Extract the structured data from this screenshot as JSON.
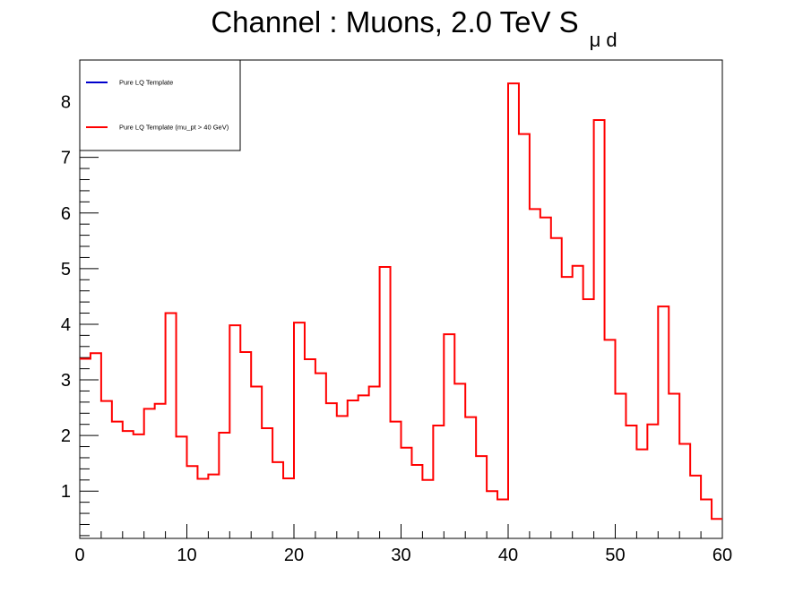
{
  "chart_data": {
    "type": "line",
    "title": "Channel : Muons, 2.0 TeV S",
    "title_subscript": "μ d",
    "xlabel": "",
    "ylabel": "",
    "xlim": [
      0,
      60
    ],
    "ylim": [
      0.15,
      8.75
    ],
    "xticks": [
      0,
      10,
      20,
      30,
      40,
      50,
      60
    ],
    "yticks": [
      1,
      2,
      3,
      4,
      5,
      6,
      7,
      8
    ],
    "grid": false,
    "legend_position": "top-left",
    "bin_width": 1,
    "series": [
      {
        "name": "Pure LQ Template",
        "color": "#0000cc",
        "style": "step",
        "values": []
      },
      {
        "name": "Pure LQ Template (mu_pt > 40 GeV)",
        "color": "#ff0000",
        "style": "step",
        "values": [
          3.38,
          3.48,
          2.62,
          2.25,
          2.08,
          2.02,
          2.48,
          2.57,
          4.2,
          1.98,
          1.45,
          1.22,
          1.3,
          2.05,
          3.98,
          3.5,
          2.88,
          2.13,
          1.52,
          1.23,
          4.03,
          3.37,
          3.12,
          2.58,
          2.35,
          2.63,
          2.72,
          2.88,
          5.03,
          2.25,
          1.78,
          1.47,
          1.2,
          2.18,
          3.82,
          2.93,
          2.33,
          1.63,
          1.0,
          0.85,
          8.33,
          7.42,
          6.07,
          5.92,
          5.55,
          4.85,
          5.05,
          4.45,
          7.67,
          3.72,
          2.75,
          2.18,
          1.75,
          2.2,
          4.32,
          2.75,
          1.85,
          1.28,
          0.85,
          0.5
        ]
      }
    ]
  }
}
